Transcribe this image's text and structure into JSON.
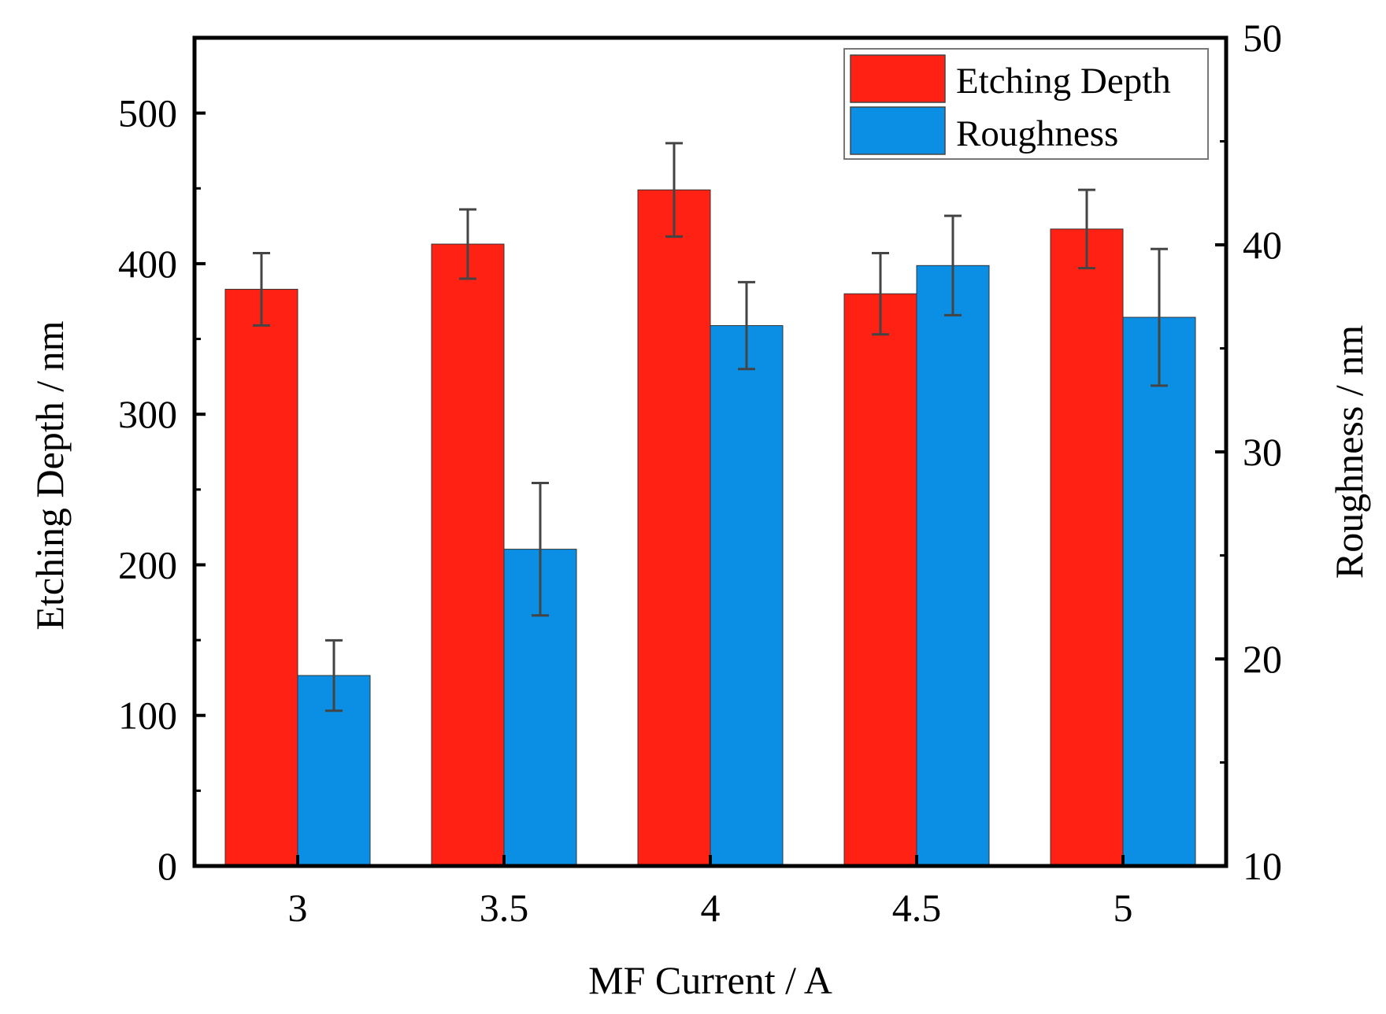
{
  "chart_data": {
    "type": "bar",
    "xlabel": "MF Current / A",
    "categories": [
      "3",
      "3.5",
      "4",
      "4.5",
      "5"
    ],
    "left_axis": {
      "label": "Etching Depth / nm",
      "ylim": [
        0,
        550
      ],
      "ticks": [
        0,
        100,
        200,
        300,
        400,
        500
      ]
    },
    "right_axis": {
      "label": "Roughness / nm",
      "ylim": [
        10,
        50
      ],
      "ticks": [
        10,
        20,
        30,
        40,
        50
      ]
    },
    "series": [
      {
        "name": "Etching Depth",
        "axis": "left",
        "color": "#ff2214",
        "values": [
          383,
          413,
          449,
          380,
          423
        ],
        "errors": [
          24,
          23,
          31,
          27,
          26
        ]
      },
      {
        "name": "Roughness",
        "axis": "right",
        "color": "#0a8fe5",
        "values": [
          19.2,
          25.3,
          36.1,
          39.0,
          36.5
        ],
        "errors": [
          1.7,
          3.2,
          2.1,
          2.4,
          3.3
        ]
      }
    ],
    "legend_position": "top-right"
  }
}
